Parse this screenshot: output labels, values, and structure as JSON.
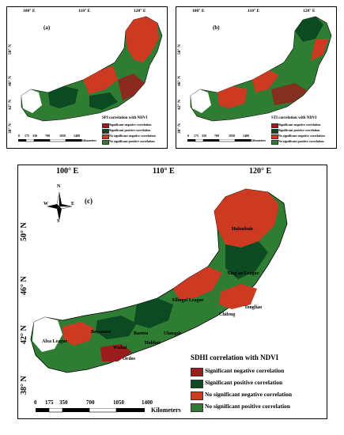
{
  "colors": {
    "sig_neg": "#9b1c1c",
    "sig_pos": "#0c4a22",
    "nonsig_neg": "#cc3a22",
    "nonsig_pos": "#2e7d32",
    "white": "#ffffff"
  },
  "legend_items": [
    "Significant negative correlation",
    "Significant positive correlation",
    "No significant negative correlation",
    "No significant positive correlation"
  ],
  "panel_a": {
    "letter": "(a)",
    "legend_title": "SPI correlation with NDVI",
    "lon_ticks": [
      "100° E",
      "110° E",
      "120° E"
    ],
    "lat_ticks": [
      "50° N",
      "46° N",
      "42° N",
      "38° N"
    ],
    "scale_nums": [
      "0",
      "175",
      "350",
      "700",
      "1050",
      "1400"
    ],
    "scale_unit": "Kilometers"
  },
  "panel_b": {
    "letter": "(b)",
    "legend_title": "STI correlation with NDVI",
    "lon_ticks": [
      "100° E",
      "110° E",
      "120° E"
    ],
    "lat_ticks": [
      "50° N",
      "46° N",
      "42° N",
      "38° N"
    ],
    "scale_nums": [
      "0",
      "175",
      "350",
      "700",
      "1050",
      "1400"
    ],
    "scale_unit": "Kilometers"
  },
  "panel_c": {
    "letter": "(c)",
    "legend_title": "SDHI correlation with NDVI",
    "lon_ticks": [
      "100° E",
      "110° E",
      "120° E"
    ],
    "lat_ticks": [
      "50° N",
      "46° N",
      "42° N",
      "38° N"
    ],
    "scale_nums": [
      "0",
      "175",
      "350",
      "700",
      "1050",
      "1400"
    ],
    "scale_unit": "Kilometers",
    "compass": {
      "n": "N",
      "s": "S",
      "e": "E",
      "w": "W"
    },
    "places": [
      "Hulunbuir",
      "Xing'an League",
      "Xilingol League",
      "Tongliao",
      "Chifeng",
      "Ulanqab",
      "Baotou",
      "Hohhot",
      "Ordos",
      "Bayannur",
      "Alxa League",
      "Wuhai"
    ]
  }
}
